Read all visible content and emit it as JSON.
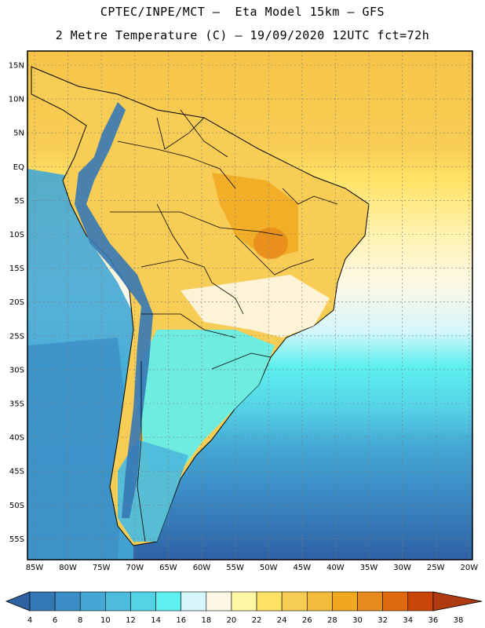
{
  "header": {
    "title_line1": "CPTEC/INPE/MCT –  Eta Model 15km – GFS",
    "title_line2": "2 Metre Temperature (C) – 19/09/2020 12UTC fct=72h"
  },
  "map": {
    "lat_labels": [
      "15N",
      "10N",
      "5N",
      "EQ",
      "5S",
      "10S",
      "15S",
      "20S",
      "25S",
      "30S",
      "35S",
      "40S",
      "45S",
      "50S",
      "55S"
    ],
    "lon_labels": [
      "85W",
      "80W",
      "75W",
      "70W",
      "65W",
      "60W",
      "55W",
      "50W",
      "45W",
      "40W",
      "35W",
      "30W",
      "25W",
      "20W"
    ]
  },
  "legend": {
    "values": [
      "4",
      "6",
      "8",
      "10",
      "12",
      "14",
      "16",
      "18",
      "20",
      "22",
      "24",
      "26",
      "28",
      "30",
      "32",
      "34",
      "36",
      "38"
    ],
    "colors": [
      "#2e62a3",
      "#3578b6",
      "#3c8ec6",
      "#44a7d4",
      "#4dbcdc",
      "#55d3e6",
      "#5ef0ef",
      "#d6f6fb",
      "#fdf8e6",
      "#fff7a3",
      "#ffe264",
      "#f8cd55",
      "#f1bb3c",
      "#f0a81f",
      "#e88a1b",
      "#e06a10",
      "#c94608",
      "#b03a0f"
    ]
  }
}
